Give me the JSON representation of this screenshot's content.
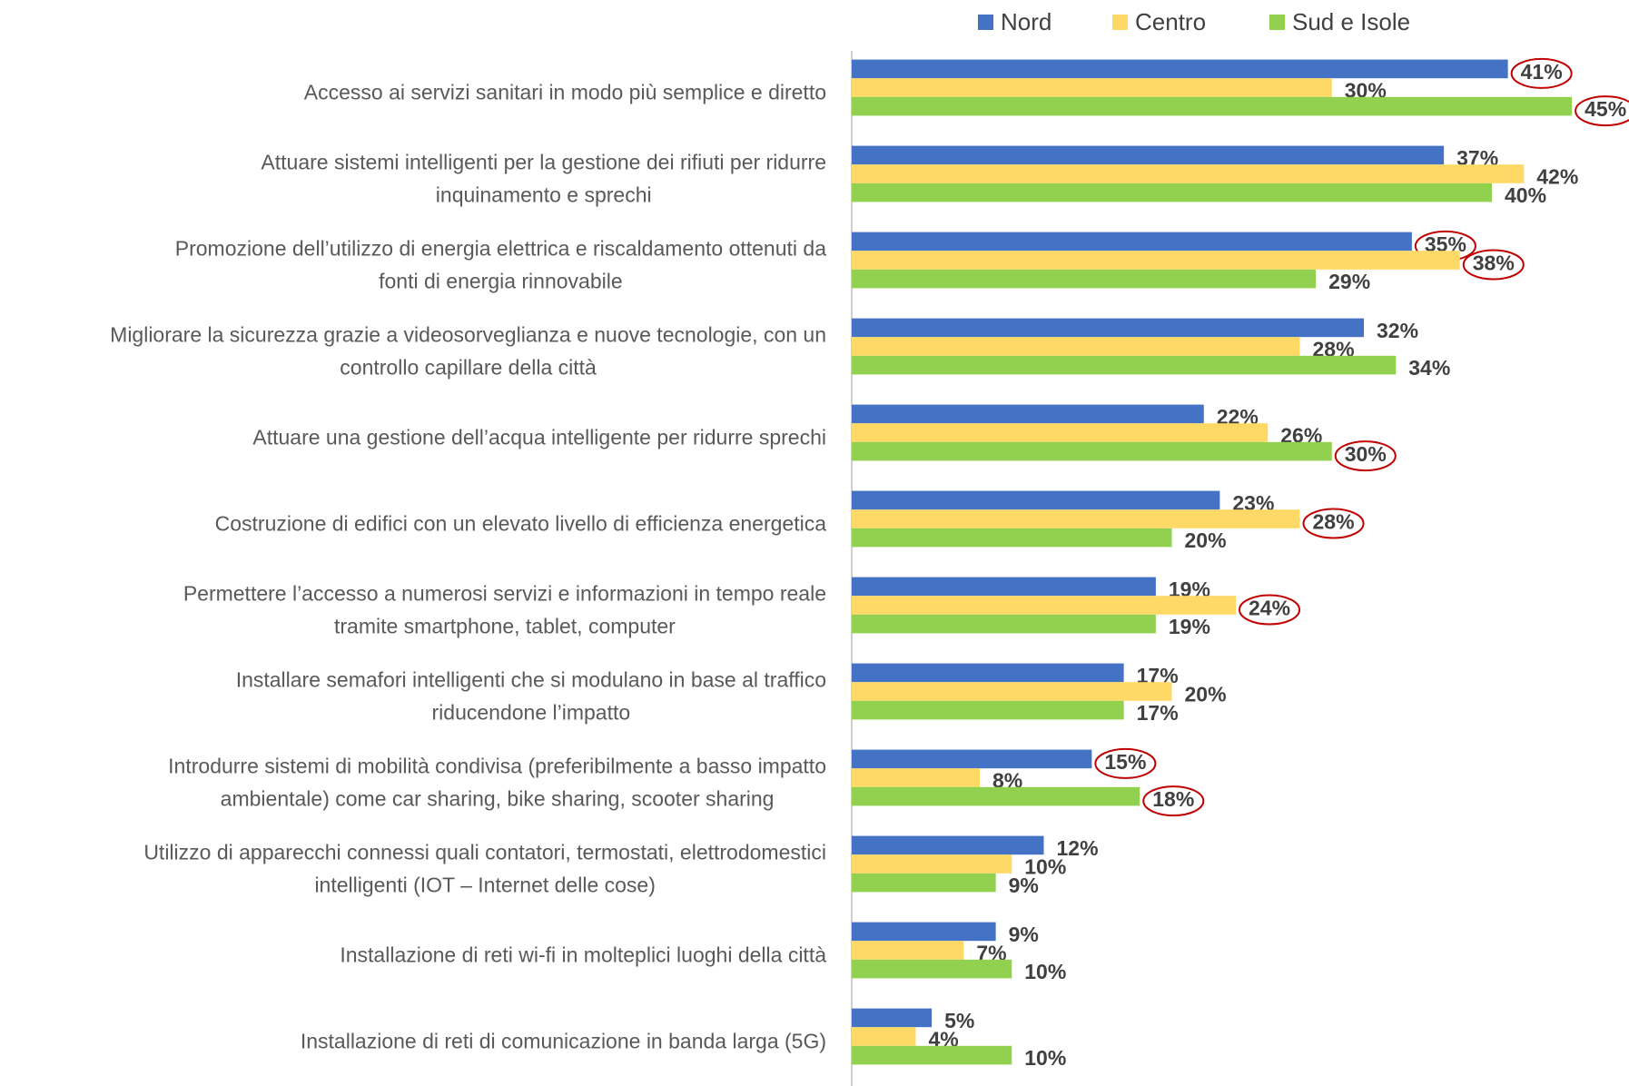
{
  "chart_data": {
    "type": "hbar",
    "categories": [
      "Accesso ai servizi sanitari in modo più semplice e diretto",
      "Attuare sistemi intelligenti per la gestione dei rifiuti per ridurre\ninquinamento e sprechi",
      "Promozione dell’utilizzo di energia elettrica e riscaldamento ottenuti da\nfonti di energia rinnovabile",
      "Migliorare la sicurezza grazie a videosorveglianza e nuove tecnologie, con un\ncontrollo capillare della città",
      "Attuare una gestione dell’acqua intelligente per ridurre sprechi",
      "Costruzione di edifici con un elevato livello di efficienza energetica",
      "Permettere l’accesso a numerosi servizi e informazioni in tempo reale\ntramite smartphone, tablet, computer",
      "Installare semafori intelligenti che si modulano in base al traffico\nriducendone l’impatto",
      "Introdurre sistemi di mobilità condivisa (preferibilmente a basso impatto\nambientale) come car sharing, bike sharing, scooter sharing",
      "Utilizzo di apparecchi connessi quali contatori, termostati, elettrodomestici\nintelligenti (IOT – Internet delle cose)",
      "Installazione di reti wi-fi in molteplici luoghi della città",
      "Installazione di reti di comunicazione in banda larga (5G)"
    ],
    "series": [
      {
        "name": "Nord",
        "color": "#4472c4",
        "values": [
          41,
          37,
          35,
          32,
          22,
          23,
          19,
          17,
          15,
          12,
          9,
          5
        ],
        "value_labels": [
          "41%",
          "37%",
          "35%",
          "32%",
          "22%",
          "23%",
          "19%",
          "17%",
          "15%",
          "12%",
          "9%",
          "5%"
        ],
        "circled": [
          0,
          2,
          8
        ]
      },
      {
        "name": "Centro",
        "color": "#ffd966",
        "values": [
          30,
          42,
          38,
          28,
          26,
          28,
          24,
          20,
          8,
          10,
          7,
          4
        ],
        "value_labels": [
          "30%",
          "42%",
          "38%",
          "28%",
          "26%",
          "28%",
          "24%",
          "20%",
          "8%",
          "10%",
          "7%",
          "4%"
        ],
        "circled": [
          2,
          5,
          6
        ]
      },
      {
        "name": "Sud e Isole",
        "color": "#92d050",
        "values": [
          45,
          40,
          29,
          34,
          30,
          20,
          19,
          17,
          18,
          9,
          10,
          10
        ],
        "value_labels": [
          "45%",
          "40%",
          "29%",
          "34%",
          "30%",
          "20%",
          "19%",
          "17%",
          "18%",
          "9%",
          "10%",
          "10%"
        ],
        "circled": [
          0,
          4,
          8
        ]
      }
    ],
    "xlim": [
      0,
      48
    ],
    "legend": "top"
  }
}
